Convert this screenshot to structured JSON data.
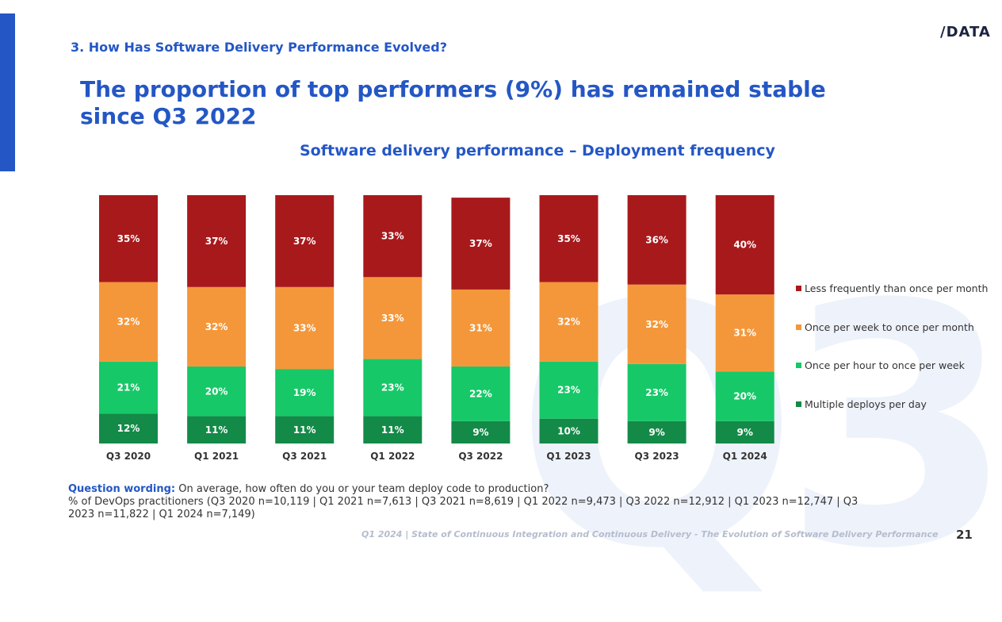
{
  "colors": {
    "accent": "#2457c5",
    "less_frequent": "#a8191c",
    "weekly_monthly": "#f4973a",
    "hourly_weekly": "#17c868",
    "multiple_daily": "#138a48"
  },
  "header": {
    "section_title": "3. How Has Software Delivery Performance Evolved?",
    "logo": "/DATA",
    "headline": "The proportion of top performers (9%) has remained stable since Q3 2022"
  },
  "watermark": "Q3",
  "chart_data": {
    "type": "bar",
    "stacked": true,
    "orientation": "vertical",
    "title": "Software delivery performance – Deployment frequency",
    "xlabel": "",
    "ylabel": "",
    "ylim": [
      0,
      100
    ],
    "grid": false,
    "legend_position": "right",
    "categories": [
      "Q3 2020",
      "Q1 2021",
      "Q3 2021",
      "Q1 2022",
      "Q3 2022",
      "Q1 2023",
      "Q3 2023",
      "Q1 2024"
    ],
    "series": [
      {
        "name": "Multiple deploys per day",
        "color": "#138a48",
        "values": [
          12,
          11,
          11,
          11,
          9,
          10,
          9,
          9
        ],
        "labels": [
          "12%",
          "11%",
          "11%",
          "11%",
          "9%",
          "10%",
          "9%",
          "9%"
        ]
      },
      {
        "name": "Once per hour to once per week",
        "color": "#17c868",
        "values": [
          21,
          20,
          19,
          23,
          22,
          23,
          23,
          20
        ],
        "labels": [
          "21%",
          "20%",
          "19%",
          "23%",
          "22%",
          "23%",
          "23%",
          "20%"
        ]
      },
      {
        "name": "Once per week to once per month",
        "color": "#f4973a",
        "values": [
          32,
          32,
          33,
          33,
          31,
          32,
          32,
          31
        ],
        "labels": [
          "32%",
          "32%",
          "33%",
          "33%",
          "31%",
          "32%",
          "32%",
          "31%"
        ]
      },
      {
        "name": "Less frequently than once per month",
        "color": "#a8191c",
        "values": [
          35,
          37,
          37,
          33,
          37,
          35,
          36,
          40
        ],
        "labels": [
          "35%",
          "37%",
          "37%",
          "33%",
          "37%",
          "35%",
          "36%",
          "40%"
        ]
      }
    ],
    "legend_order": [
      "Less frequently than once per month",
      "Once per week to once per month",
      "Once per hour to once per week",
      "Multiple deploys per day"
    ]
  },
  "footnote": {
    "lead": "Question wording:",
    "question": " On average, how often do you or your team deploy code to production?",
    "sample": "% of DevOps practitioners (Q3 2020 n=10,119 | Q1 2021 n=7,613 | Q3 2021 n=8,619 | Q1 2022 n=9,473 | Q3 2022 n=12,912 | Q1 2023 n=12,747 | Q3 2023 n=11,822 | Q1 2024 n=7,149)"
  },
  "footer": {
    "text": "Q1 2024 | State of Continuous Integration and Continuous Delivery - The Evolution of Software Delivery Performance",
    "page_number": "21"
  }
}
